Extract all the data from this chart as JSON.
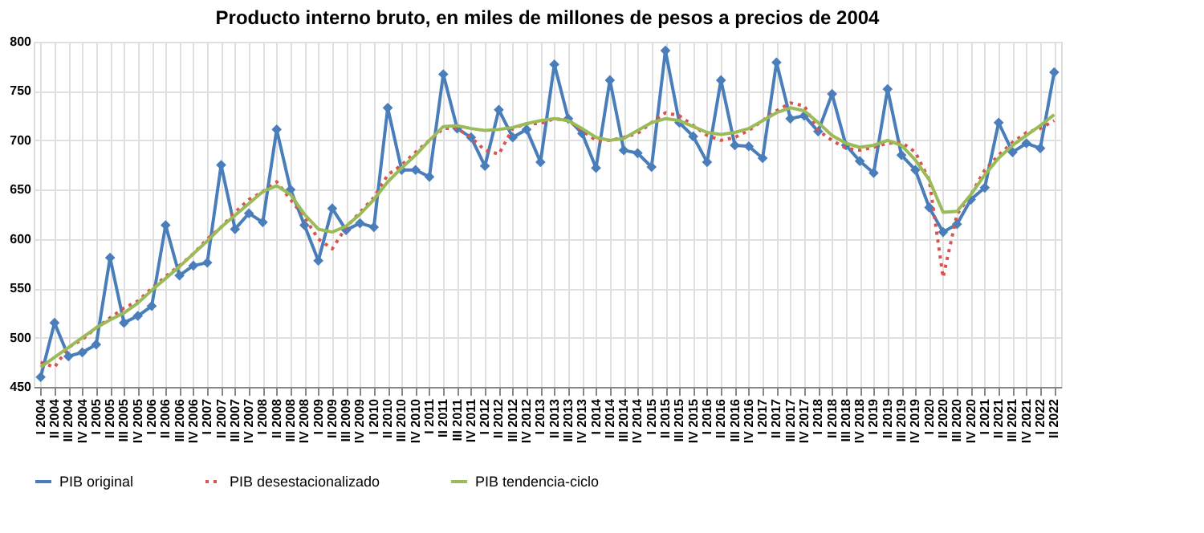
{
  "chart_data": {
    "type": "line",
    "title": "Producto interno bruto, en miles de millones de pesos a precios de 2004",
    "categories": [
      "I 2004",
      "II 2004",
      "III 2004",
      "IV 2004",
      "I 2005",
      "II 2005",
      "III 2005",
      "IV 2005",
      "I 2006",
      "II 2006",
      "III 2006",
      "IV 2006",
      "I 2007",
      "II 2007",
      "III 2007",
      "IV 2007",
      "I 2008",
      "II 2008",
      "III 2008",
      "IV 2008",
      "I 2009",
      "II 2009",
      "III 2009",
      "IV 2009",
      "I 2010",
      "II 2010",
      "III 2010",
      "IV 2010",
      "I 2011",
      "II 2011",
      "III 2011",
      "IV 2011",
      "I 2012",
      "II 2012",
      "III 2012",
      "IV 2012",
      "I 2013",
      "II 2013",
      "III 2013",
      "IV 2013",
      "I 2014",
      "II 2014",
      "III 2014",
      "IV 2014",
      "I 2015",
      "II 2015",
      "III 2015",
      "IV 2015",
      "I 2016",
      "II 2016",
      "III 2016",
      "IV 2016",
      "I 2017",
      "II 2017",
      "III 2017",
      "IV 2017",
      "I 2018",
      "II 2018",
      "III 2018",
      "IV 2018",
      "I 2019",
      "II 2019",
      "III 2019",
      "IV 2019",
      "I 2020",
      "II 2020",
      "III 2020",
      "IV 2020",
      "I 2021",
      "II 2021",
      "III 2021",
      "IV 2021",
      "I 2022",
      "II 2022"
    ],
    "series": [
      {
        "name": "PIB original",
        "color": "#4a7ebb",
        "marker": "diamond",
        "line_style": "solid",
        "values": [
          460,
          515,
          481,
          485,
          493,
          581,
          515,
          522,
          532,
          614,
          563,
          573,
          576,
          675,
          610,
          626,
          617,
          711,
          650,
          614,
          578,
          631,
          609,
          616,
          612,
          733,
          670,
          670,
          663,
          767,
          712,
          703,
          674,
          731,
          703,
          711,
          678,
          777,
          722,
          707,
          672,
          761,
          690,
          687,
          673,
          791,
          718,
          704,
          678,
          761,
          695,
          694,
          682,
          779,
          722,
          725,
          709,
          747,
          695,
          679,
          667,
          752,
          685,
          670,
          632,
          607,
          615,
          640,
          652,
          718,
          688,
          697,
          692,
          769
        ]
      },
      {
        "name": "PIB desestacionalizado",
        "color": "#d9534f",
        "marker": "none",
        "line_style": "dotted",
        "values": [
          475,
          470,
          490,
          498,
          510,
          520,
          530,
          537,
          550,
          562,
          573,
          585,
          600,
          612,
          627,
          640,
          648,
          658,
          640,
          622,
          600,
          590,
          612,
          627,
          642,
          665,
          675,
          688,
          700,
          712,
          712,
          703,
          690,
          686,
          712,
          717,
          717,
          722,
          720,
          710,
          700,
          700,
          703,
          707,
          718,
          728,
          725,
          715,
          705,
          700,
          703,
          710,
          720,
          730,
          738,
          735,
          710,
          700,
          692,
          690,
          693,
          697,
          698,
          688,
          660,
          561,
          625,
          645,
          670,
          685,
          698,
          708,
          712,
          720
        ]
      },
      {
        "name": "PIB tendencia-ciclo",
        "color": "#9bbb59",
        "marker": "none",
        "line_style": "solid",
        "values": [
          470,
          480,
          490,
          500,
          510,
          518,
          525,
          535,
          548,
          560,
          572,
          585,
          598,
          612,
          624,
          636,
          648,
          654,
          645,
          625,
          610,
          607,
          613,
          625,
          640,
          658,
          672,
          685,
          700,
          714,
          715,
          712,
          710,
          711,
          713,
          717,
          720,
          722,
          720,
          712,
          703,
          700,
          702,
          710,
          718,
          722,
          720,
          714,
          708,
          706,
          708,
          712,
          720,
          728,
          733,
          730,
          718,
          705,
          697,
          693,
          695,
          700,
          695,
          680,
          660,
          627,
          628,
          645,
          665,
          682,
          695,
          705,
          715,
          726
        ]
      }
    ],
    "ylim": [
      450,
      800
    ],
    "yticks": [
      450,
      500,
      550,
      600,
      650,
      700,
      750,
      800
    ],
    "grid": true,
    "legend": "bottom"
  }
}
